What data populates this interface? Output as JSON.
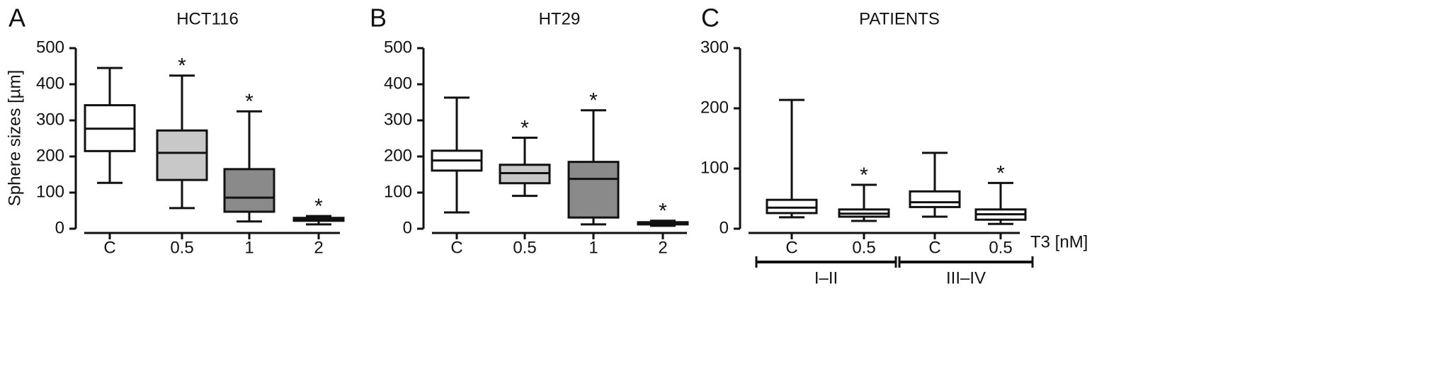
{
  "chart_data": [
    {
      "type": "box",
      "panel": "A",
      "title": "HCT116",
      "ylabel": "Sphere sizes [µm]",
      "categories": [
        "C",
        "0.5",
        "1",
        "2"
      ],
      "boxes": [
        [
          127,
          215,
          277,
          342,
          445
        ],
        [
          57,
          135,
          210,
          272,
          424
        ],
        [
          20,
          47,
          86,
          165,
          325
        ],
        [
          12,
          22,
          25,
          30,
          35
        ]
      ],
      "box_colors": [
        "#ffffff",
        "#c8c8c8",
        "#8a8a8a",
        "#555555"
      ],
      "significance": [
        null,
        "*",
        "*",
        "*"
      ],
      "ylim": [
        0,
        500
      ],
      "yticks": [
        0,
        100,
        200,
        300,
        400,
        500
      ]
    },
    {
      "type": "box",
      "panel": "B",
      "title": "HT29",
      "categories": [
        "C",
        "0.5",
        "1",
        "2"
      ],
      "boxes": [
        [
          45,
          161,
          189,
          216,
          363
        ],
        [
          91,
          126,
          154,
          177,
          252
        ],
        [
          12,
          31,
          138,
          185,
          328
        ],
        [
          8,
          12,
          15,
          18,
          22
        ]
      ],
      "box_colors": [
        "#ffffff",
        "#c8c8c8",
        "#8a8a8a",
        "#555555"
      ],
      "significance": [
        null,
        "*",
        "*",
        "*"
      ],
      "ylim": [
        0,
        500
      ],
      "yticks": [
        0,
        100,
        200,
        300,
        400,
        500
      ]
    },
    {
      "type": "box",
      "panel": "C",
      "title": "PATIENTS",
      "xlabel": "T3 [nM]",
      "categories": [
        "C",
        "0.5",
        "C",
        "0.5"
      ],
      "boxes": [
        [
          19,
          26,
          35,
          48,
          214
        ],
        [
          13,
          20,
          25,
          32,
          73
        ],
        [
          20,
          36,
          44,
          62,
          126
        ],
        [
          8,
          15,
          24,
          32,
          76
        ]
      ],
      "box_colors": [
        "#ffffff",
        "#ffffff",
        "#ffffff",
        "#ffffff"
      ],
      "significance": [
        null,
        "*",
        null,
        "*"
      ],
      "groups": [
        {
          "label": "I–II",
          "span": [
            0,
            1
          ]
        },
        {
          "label": "III–IV",
          "span": [
            2,
            3
          ]
        }
      ],
      "ylim": [
        0,
        300
      ],
      "yticks": [
        0,
        100,
        200,
        300
      ]
    }
  ]
}
